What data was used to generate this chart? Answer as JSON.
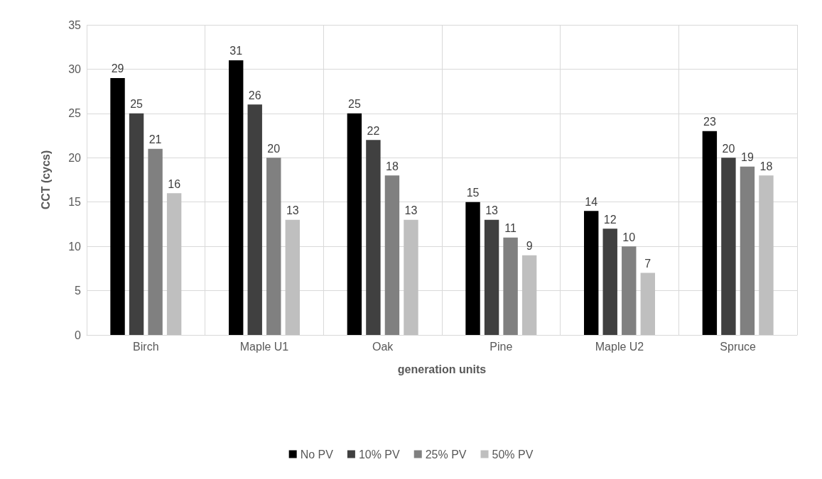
{
  "chart_data": {
    "type": "bar",
    "xlabel": "generation units",
    "ylabel": "CCT (cycs)",
    "categories": [
      "Birch",
      "Maple U1",
      "Oak",
      "Pine",
      "Maple U2",
      "Spruce"
    ],
    "series": [
      {
        "name": "No PV",
        "color": "#000000",
        "values": [
          29,
          31,
          25,
          15,
          14,
          23
        ]
      },
      {
        "name": "10% PV",
        "color": "#404040",
        "values": [
          25,
          26,
          22,
          13,
          12,
          20
        ]
      },
      {
        "name": "25% PV",
        "color": "#808080",
        "values": [
          21,
          20,
          18,
          11,
          10,
          19
        ]
      },
      {
        "name": "50% PV",
        "color": "#bfbfbf",
        "values": [
          16,
          13,
          13,
          9,
          7,
          18
        ]
      }
    ],
    "ylim": [
      0,
      35
    ],
    "yticks": [
      0,
      5,
      10,
      15,
      20,
      25,
      30,
      35
    ],
    "grid": true,
    "legend": "bottom",
    "data_labels": true
  }
}
